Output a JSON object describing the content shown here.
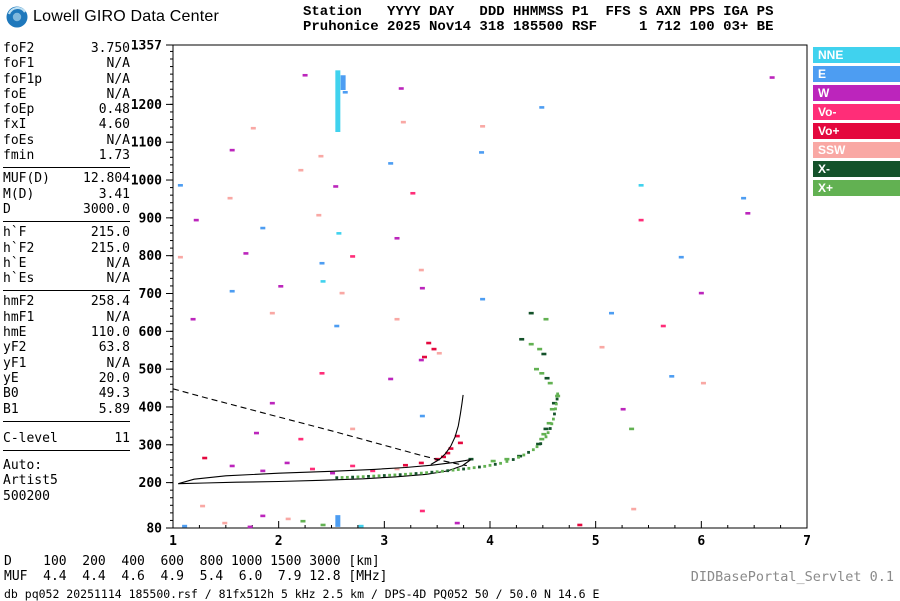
{
  "header": {
    "logo_title": "Lowell GIRO Data Center",
    "station_line1": "Station   YYYY DAY   DDD HHMMSS P1  FFS S AXN PPS IGA PS",
    "station_line2": "Pruhonice 2025 Nov14 318 185500 RSF     1 712 100 03+ BE"
  },
  "params": {
    "groups": [
      {
        "rows": [
          [
            "foF2",
            "3.750"
          ],
          [
            "foF1",
            "N/A"
          ],
          [
            "foF1p",
            "N/A"
          ],
          [
            "foE",
            "N/A"
          ],
          [
            "foEp",
            "0.48"
          ],
          [
            "fxI",
            "4.60"
          ],
          [
            "foEs",
            "N/A"
          ],
          [
            "fmin",
            "1.73"
          ]
        ]
      },
      {
        "rows": [
          [
            "MUF(D)",
            "12.804"
          ],
          [
            "M(D)",
            "3.41"
          ],
          [
            "D",
            "3000.0"
          ]
        ]
      },
      {
        "rows": [
          [
            "h`F",
            "215.0"
          ],
          [
            "h`F2",
            "215.0"
          ],
          [
            "h`E",
            "N/A"
          ],
          [
            "h`Es",
            "N/A"
          ]
        ]
      },
      {
        "rows": [
          [
            "hmF2",
            "258.4"
          ],
          [
            "hmF1",
            "N/A"
          ],
          [
            "hmE",
            "110.0"
          ],
          [
            "yF2",
            "63.8"
          ],
          [
            "yF1",
            "N/A"
          ],
          [
            "yE",
            "20.0"
          ],
          [
            "B0",
            "49.3"
          ],
          [
            "B1",
            "5.89"
          ]
        ]
      },
      {
        "gap_before": true,
        "rows": [
          [
            "C-level",
            "11"
          ]
        ]
      }
    ],
    "auto_label": "Auto:",
    "auto_lines": [
      "Artist5",
      "500200"
    ]
  },
  "legend": {
    "items": [
      {
        "label": "NNE",
        "color": "#40d2ee"
      },
      {
        "label": "E",
        "color": "#4d9df2"
      },
      {
        "label": "W",
        "color": "#bc25bc"
      },
      {
        "label": "Vo-",
        "color": "#ff2d78"
      },
      {
        "label": "Vo+",
        "color": "#e4083e"
      },
      {
        "label": "SSW",
        "color": "#f9a8a4"
      },
      {
        "label": "X-",
        "color": "#14522a"
      },
      {
        "label": "X+",
        "color": "#62b152"
      }
    ]
  },
  "chart_data": {
    "type": "scatter",
    "x_axis": {
      "min": 1,
      "max": 7,
      "ticks": [
        1,
        2,
        3,
        4,
        5,
        6,
        7
      ],
      "minor_step": 0.25
    },
    "y_axis": {
      "min": 80,
      "max": 1357,
      "tick_labels": [
        1357,
        1200,
        1100,
        1000,
        900,
        800,
        700,
        600,
        500,
        400,
        300,
        200,
        80
      ],
      "minor_step": 20
    },
    "echo_points": [
      [
        1.76,
        1137,
        "SSW"
      ],
      [
        2.25,
        1277,
        "W"
      ],
      [
        2.63,
        1232,
        "E"
      ],
      [
        3.16,
        1242,
        "W"
      ],
      [
        3.18,
        1153,
        "SSW"
      ],
      [
        3.93,
        1142,
        "SSW"
      ],
      [
        6.67,
        1271,
        "W"
      ],
      [
        4.49,
        1192,
        "E"
      ],
      [
        1.56,
        1079,
        "W"
      ],
      [
        2.4,
        1063,
        "SSW"
      ],
      [
        3.06,
        1044,
        "E"
      ],
      [
        3.92,
        1073,
        "E"
      ],
      [
        2.21,
        1026,
        "SSW"
      ],
      [
        1.07,
        986,
        "E"
      ],
      [
        1.54,
        952,
        "SSW"
      ],
      [
        2.54,
        983,
        "W"
      ],
      [
        3.27,
        965,
        "Vo-"
      ],
      [
        6.4,
        952,
        "E"
      ],
      [
        5.43,
        986,
        "NNE"
      ],
      [
        1.22,
        894,
        "W"
      ],
      [
        1.85,
        873,
        "E"
      ],
      [
        2.38,
        907,
        "SSW"
      ],
      [
        2.57,
        859,
        "NNE"
      ],
      [
        3.12,
        846,
        "W"
      ],
      [
        6.44,
        912,
        "W"
      ],
      [
        5.43,
        894,
        "Vo-"
      ],
      [
        1.07,
        796,
        "SSW"
      ],
      [
        1.69,
        806,
        "W"
      ],
      [
        2.41,
        780,
        "E"
      ],
      [
        2.7,
        798,
        "Vo-"
      ],
      [
        5.81,
        796,
        "E"
      ],
      [
        3.35,
        762,
        "SSW"
      ],
      [
        1.56,
        706,
        "E"
      ],
      [
        2.02,
        719,
        "W"
      ],
      [
        2.42,
        732,
        "NNE"
      ],
      [
        2.6,
        701,
        "SSW"
      ],
      [
        3.36,
        714,
        "W"
      ],
      [
        6.0,
        701,
        "W"
      ],
      [
        3.93,
        685,
        "E"
      ],
      [
        1.19,
        632,
        "W"
      ],
      [
        1.94,
        648,
        "SSW"
      ],
      [
        2.55,
        614,
        "E"
      ],
      [
        3.12,
        632,
        "SSW"
      ],
      [
        4.39,
        648,
        "X-"
      ],
      [
        4.53,
        632,
        "X+"
      ],
      [
        5.64,
        614,
        "Vo-"
      ],
      [
        5.15,
        648,
        "E"
      ],
      [
        3.42,
        569,
        "Vo+"
      ],
      [
        3.47,
        553,
        "Vo+"
      ],
      [
        3.52,
        542,
        "SSW"
      ],
      [
        3.38,
        532,
        "Vo+"
      ],
      [
        3.35,
        524,
        "W"
      ],
      [
        4.3,
        579,
        "X-"
      ],
      [
        4.39,
        566,
        "X+"
      ],
      [
        4.47,
        553,
        "X+"
      ],
      [
        4.51,
        540,
        "X-"
      ],
      [
        5.06,
        558,
        "SSW"
      ],
      [
        4.44,
        500,
        "X+"
      ],
      [
        4.49,
        489,
        "X+"
      ],
      [
        4.54,
        476,
        "X-"
      ],
      [
        4.57,
        463,
        "X+"
      ],
      [
        3.06,
        474,
        "W"
      ],
      [
        2.41,
        489,
        "Vo-"
      ],
      [
        5.72,
        481,
        "E"
      ],
      [
        6.02,
        463,
        "SSW"
      ],
      [
        4.64,
        429,
        "X+"
      ],
      [
        4.61,
        410,
        "X-"
      ],
      [
        4.59,
        394,
        "X+"
      ],
      [
        1.94,
        410,
        "W"
      ],
      [
        5.26,
        394,
        "W"
      ],
      [
        3.36,
        376,
        "E"
      ],
      [
        4.56,
        357,
        "X+"
      ],
      [
        4.53,
        342,
        "X-"
      ],
      [
        4.51,
        328,
        "X+"
      ],
      [
        4.49,
        315,
        "X+"
      ],
      [
        4.46,
        302,
        "X-"
      ],
      [
        1.79,
        331,
        "W"
      ],
      [
        2.21,
        315,
        "Vo-"
      ],
      [
        2.7,
        342,
        "SSW"
      ],
      [
        3.69,
        323,
        "Vo+"
      ],
      [
        3.72,
        305,
        "Vo+"
      ],
      [
        5.34,
        342,
        "X+"
      ],
      [
        1.3,
        265,
        "Vo+"
      ],
      [
        1.56,
        244,
        "W"
      ],
      [
        1.85,
        231,
        "W"
      ],
      [
        2.08,
        252,
        "W"
      ],
      [
        2.32,
        236,
        "Vo-"
      ],
      [
        2.51,
        225,
        "W"
      ],
      [
        2.7,
        244,
        "Vo-"
      ],
      [
        2.89,
        231,
        "Vo-"
      ],
      [
        3.12,
        236,
        "SSW"
      ],
      [
        3.2,
        246,
        "Vo+"
      ],
      [
        3.35,
        252,
        "Vo+"
      ],
      [
        3.5,
        262,
        "Vo+"
      ],
      [
        3.56,
        268,
        "Vo+"
      ],
      [
        3.6,
        278,
        "Vo+"
      ],
      [
        3.63,
        290,
        "Vo+"
      ],
      [
        3.82,
        262,
        "X-"
      ],
      [
        4.03,
        257,
        "X+"
      ],
      [
        4.16,
        262,
        "X+"
      ],
      [
        4.28,
        270,
        "X-"
      ],
      [
        1.28,
        138,
        "SSW"
      ],
      [
        1.85,
        112,
        "W"
      ],
      [
        2.23,
        98,
        "X+"
      ],
      [
        3.36,
        125,
        "Vo-"
      ],
      [
        5.36,
        130,
        "SSW"
      ],
      [
        4.85,
        88,
        "Vo+"
      ],
      [
        1.49,
        93,
        "SSW"
      ],
      [
        1.73,
        83,
        "W"
      ],
      [
        2.42,
        88,
        "X+"
      ],
      [
        2.78,
        85,
        "NNE"
      ],
      [
        3.69,
        93,
        "W"
      ],
      [
        1.11,
        85,
        "E"
      ],
      [
        2.09,
        104,
        "SSW"
      ]
    ],
    "echo_columns": [
      {
        "f": 2.56,
        "h1": 1127,
        "h2": 1290,
        "c": "NNE"
      },
      {
        "f": 2.61,
        "h1": 1238,
        "h2": 1277,
        "c": "E"
      },
      {
        "f": 2.56,
        "h1": 83,
        "h2": 114,
        "c": "E"
      }
    ],
    "transmission_curve": [
      [
        1.0,
        448
      ],
      [
        1.3,
        425
      ],
      [
        1.6,
        403
      ],
      [
        1.9,
        381
      ],
      [
        2.2,
        359
      ],
      [
        2.5,
        337
      ],
      [
        2.8,
        314
      ],
      [
        3.1,
        291
      ],
      [
        3.35,
        272
      ],
      [
        3.55,
        258
      ],
      [
        3.7,
        249
      ],
      [
        3.78,
        245
      ]
    ],
    "o_trace_lower": [
      [
        1.05,
        197
      ],
      [
        1.3,
        199
      ],
      [
        1.6,
        201
      ],
      [
        2.0,
        203
      ],
      [
        2.4,
        206
      ],
      [
        2.8,
        210
      ],
      [
        3.1,
        215
      ],
      [
        3.4,
        222
      ],
      [
        3.6,
        231
      ],
      [
        3.74,
        245
      ],
      [
        3.82,
        261
      ]
    ],
    "o_trace_upper": [
      [
        1.05,
        197
      ],
      [
        1.2,
        209
      ],
      [
        1.5,
        218
      ],
      [
        2.0,
        225
      ],
      [
        2.5,
        230
      ],
      [
        2.9,
        235
      ],
      [
        3.2,
        240
      ],
      [
        3.45,
        246
      ],
      [
        3.65,
        253
      ],
      [
        3.76,
        258
      ],
      [
        3.82,
        261
      ]
    ],
    "f2_cusp": [
      [
        3.44,
        248
      ],
      [
        3.52,
        261
      ],
      [
        3.58,
        277
      ],
      [
        3.63,
        297
      ],
      [
        3.67,
        321
      ],
      [
        3.7,
        350
      ],
      [
        3.72,
        382
      ],
      [
        3.735,
        410
      ],
      [
        3.745,
        432
      ]
    ],
    "x_trace": [
      [
        2.55,
        213
      ],
      [
        2.75,
        215
      ],
      [
        2.95,
        218
      ],
      [
        3.15,
        221
      ],
      [
        3.35,
        225
      ],
      [
        3.55,
        230
      ],
      [
        3.75,
        236
      ],
      [
        3.95,
        243
      ],
      [
        4.1,
        251
      ],
      [
        4.22,
        261
      ],
      [
        4.32,
        273
      ],
      [
        4.41,
        287
      ],
      [
        4.48,
        303
      ],
      [
        4.53,
        321
      ],
      [
        4.57,
        343
      ],
      [
        4.6,
        368
      ],
      [
        4.62,
        395
      ],
      [
        4.635,
        421
      ],
      [
        4.645,
        448
      ]
    ]
  },
  "footer": {
    "d_row": {
      "label": "D",
      "values": [
        "100",
        "200",
        "400",
        "600",
        "800",
        "1000",
        "1500",
        "3000"
      ],
      "unit": "[km]"
    },
    "muf_row": {
      "label": "MUF",
      "values": [
        "4.4",
        "4.4",
        "4.6",
        "4.9",
        "5.4",
        "6.0",
        "7.9",
        "12.8"
      ],
      "unit": "[MHz]"
    },
    "status_line": "db pq052 20251114 185500.rsf / 81fx512h 5 kHz 2.5 km / DPS-4D PQ052 50 / 50.0 N 14.6 E",
    "servlet_label": "DIDBasePortal_Servlet 0.1"
  }
}
